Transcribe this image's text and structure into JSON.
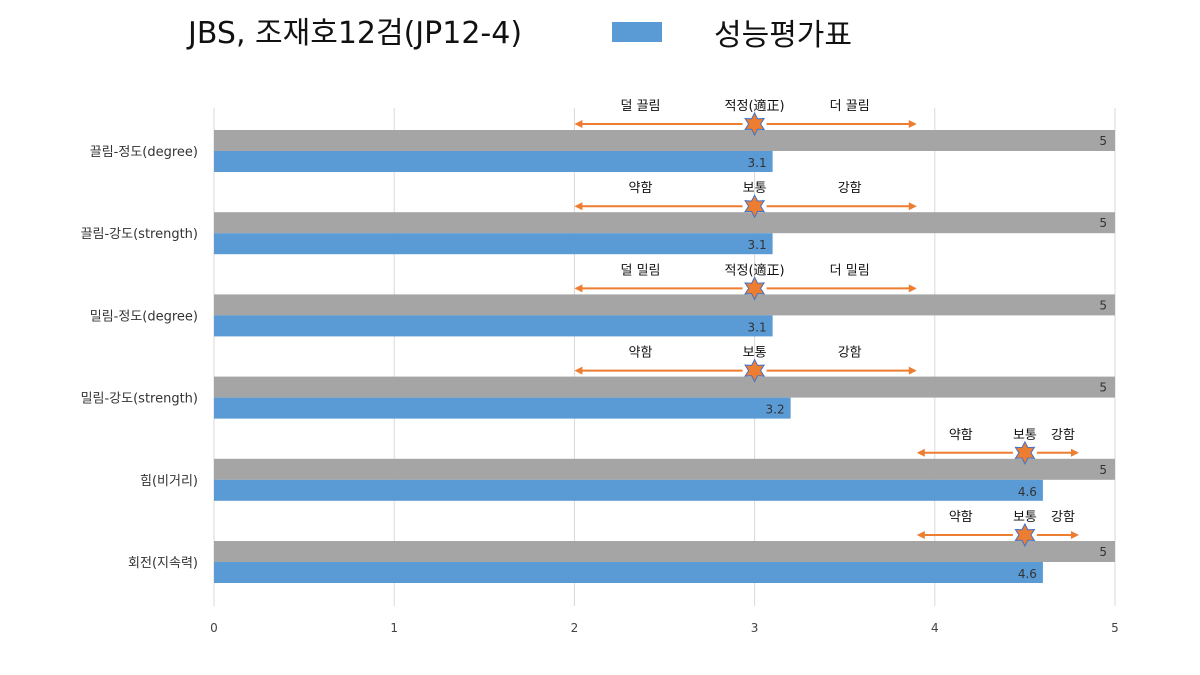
{
  "chart_data": {
    "type": "bar",
    "orientation": "horizontal",
    "title": "JBS, 조재호12검(JP12-4)",
    "legend": {
      "label": "성능평가표",
      "color": "#5B9BD5",
      "position": "top"
    },
    "categories": [
      "끌림-정도(degree)",
      "끌림-강도(strength)",
      "밀림-정도(degree)",
      "밀림-강도(strength)",
      "힘(비거리)",
      "회전(지속력)"
    ],
    "series": [
      {
        "values": [
          5,
          5,
          5,
          5,
          5,
          5
        ],
        "color": "#A5A5A5"
      },
      {
        "name": "성능평가표",
        "values": [
          3.1,
          3.1,
          3.1,
          3.2,
          4.6,
          4.6
        ],
        "color": "#5B9BD5"
      }
    ],
    "xlim": [
      0,
      5
    ],
    "xticks": [
      0,
      1,
      2,
      3,
      4,
      5
    ],
    "grid": true,
    "annotations": [
      {
        "left": "덜 끌림",
        "center": "적정(適正)",
        "right": "더 끌림",
        "marker": 3.0,
        "from": 2.0,
        "to": 3.9
      },
      {
        "left": "약함",
        "center": "보통",
        "right": "강함",
        "marker": 3.0,
        "from": 2.0,
        "to": 3.9
      },
      {
        "left": "덜 밀림",
        "center": "적정(適正)",
        "right": "더 밀림",
        "marker": 3.0,
        "from": 2.0,
        "to": 3.9
      },
      {
        "left": "약함",
        "center": "보통",
        "right": "강함",
        "marker": 3.0,
        "from": 2.0,
        "to": 3.9
      },
      {
        "left": "약함",
        "center": "보통",
        "right": "강함",
        "marker": 4.5,
        "from": 3.9,
        "to": 4.8
      },
      {
        "left": "약함",
        "center": "보통",
        "right": "강함",
        "marker": 4.5,
        "from": 3.9,
        "to": 4.8
      }
    ],
    "colors": {
      "arrow": "#ED7D31",
      "star": "#ED7D31",
      "star_stroke": "#4472C4",
      "grid": "#D9D9D9"
    }
  }
}
